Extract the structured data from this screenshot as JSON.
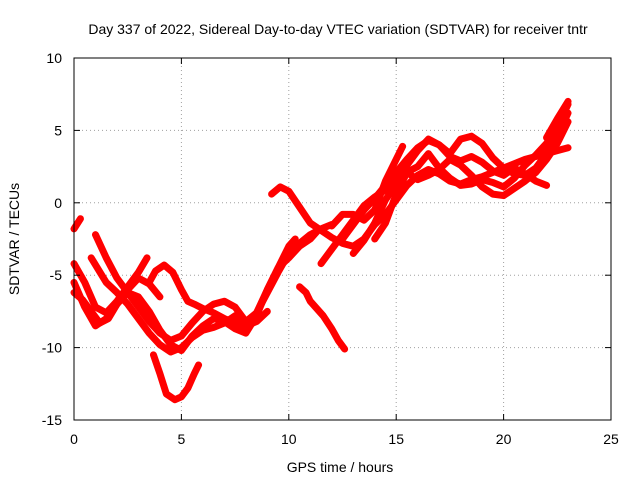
{
  "chart_data": {
    "type": "scatter",
    "title": "Day 337 of 2022, Sidereal Day-to-day VTEC variation (SDTVAR) for receiver tntr",
    "xlabel": "GPS time / hours",
    "ylabel": "SDTVAR / TECUs",
    "xlim": [
      0,
      25
    ],
    "ylim": [
      -15,
      10
    ],
    "xticks": [
      0,
      5,
      10,
      15,
      20,
      25
    ],
    "yticks": [
      -15,
      -10,
      -5,
      0,
      5,
      10
    ],
    "grid": true,
    "marker_color": "#ff0000",
    "series": [
      {
        "x": [
          0.0,
          0.3
        ],
        "y": [
          -1.8,
          -1.1
        ]
      },
      {
        "x": [
          0.0,
          0.5,
          1.0,
          1.5,
          2.0,
          2.5,
          3.0,
          3.4
        ],
        "y": [
          -4.2,
          -5.5,
          -7.2,
          -7.6,
          -6.8,
          -5.8,
          -4.8,
          -3.8
        ]
      },
      {
        "x": [
          0.0,
          0.5,
          1.0,
          1.5,
          2.0,
          2.5,
          3.0,
          3.5,
          4.0,
          4.5,
          5.0,
          5.5,
          6.0,
          6.5,
          7.0,
          7.5,
          8.0,
          8.5,
          9.0,
          9.5,
          10.0,
          10.5,
          11.0,
          11.3
        ],
        "y": [
          -5.5,
          -7.2,
          -8.5,
          -8.0,
          -7.0,
          -6.2,
          -6.5,
          -7.5,
          -8.8,
          -9.8,
          -10.2,
          -9.2,
          -8.5,
          -8.0,
          -8.2,
          -8.7,
          -9.0,
          -7.8,
          -6.0,
          -4.5,
          -3.8,
          -3.0,
          -2.5,
          -2.0
        ]
      },
      {
        "x": [
          0.0,
          0.4,
          0.8,
          1.2,
          1.6,
          2.0,
          2.5,
          3.0,
          3.5,
          4.0
        ],
        "y": [
          -6.2,
          -6.7,
          -7.5,
          -8.3,
          -8.0,
          -7.0,
          -6.0,
          -5.2,
          -5.6,
          -6.5
        ]
      },
      {
        "x": [
          0.8,
          1.5,
          2.0,
          2.5,
          3.0,
          3.5,
          4.0,
          4.5,
          5.0,
          5.5,
          6.0,
          6.5,
          7.0,
          7.5,
          8.0,
          8.5,
          9.0,
          9.5,
          10.0,
          10.5,
          11.0,
          11.5,
          12.0
        ],
        "y": [
          -3.8,
          -5.5,
          -6.2,
          -7.0,
          -8.0,
          -9.0,
          -9.8,
          -10.3,
          -10.0,
          -9.3,
          -8.8,
          -8.6,
          -8.3,
          -7.8,
          -8.5,
          -7.6,
          -6.2,
          -4.8,
          -3.5,
          -2.8,
          -2.2,
          -1.8,
          -1.5
        ]
      },
      {
        "x": [
          1.0,
          1.5,
          2.0,
          2.5,
          3.0,
          3.5,
          4.0,
          4.5,
          5.0,
          5.5,
          6.0,
          6.5,
          7.0,
          7.5,
          8.0,
          8.5,
          9.0,
          9.5,
          10.0,
          10.3
        ],
        "y": [
          -2.2,
          -3.8,
          -5.2,
          -6.2,
          -7.2,
          -8.2,
          -9.0,
          -9.5,
          -9.2,
          -8.3,
          -7.5,
          -7.0,
          -6.8,
          -7.2,
          -8.2,
          -7.6,
          -6.0,
          -4.5,
          -3.0,
          -2.5
        ]
      },
      {
        "x": [
          3.5,
          3.8,
          4.2,
          4.6,
          5.0,
          5.3,
          5.6,
          6.0,
          6.5,
          7.0,
          7.5,
          8.0,
          8.5,
          9.0
        ],
        "y": [
          -5.5,
          -4.7,
          -4.3,
          -4.8,
          -6.0,
          -6.8,
          -7.0,
          -7.3,
          -7.6,
          -8.0,
          -8.3,
          -8.5,
          -8.2,
          -7.5
        ]
      },
      {
        "x": [
          3.7,
          4.0,
          4.3,
          4.7,
          5.0,
          5.3,
          5.6,
          5.8
        ],
        "y": [
          -10.5,
          -11.8,
          -13.2,
          -13.6,
          -13.4,
          -12.8,
          -11.8,
          -11.2
        ]
      },
      {
        "x": [
          9.2,
          9.6,
          10.0,
          10.5,
          11.0,
          11.5,
          12.0,
          12.5,
          13.0,
          13.5,
          14.0,
          14.5,
          15.0,
          15.5,
          16.0,
          16.5,
          17.0,
          17.5,
          18.0,
          18.5,
          19.0,
          19.5,
          20.0,
          20.5,
          21.0,
          21.5,
          22.0,
          22.5,
          23.0
        ],
        "y": [
          0.6,
          1.1,
          0.8,
          -0.3,
          -1.4,
          -1.9,
          -2.4,
          -2.8,
          -3.0,
          -2.5,
          -1.5,
          -0.8,
          0.2,
          1.2,
          1.9,
          2.3,
          2.0,
          1.5,
          1.3,
          1.6,
          1.8,
          2.1,
          2.4,
          2.7,
          3.0,
          3.2,
          3.4,
          3.6,
          3.8
        ]
      },
      {
        "x": [
          10.5,
          10.8,
          11.0,
          11.3,
          11.6,
          12.0,
          12.3,
          12.6
        ],
        "y": [
          -5.8,
          -6.2,
          -6.8,
          -7.3,
          -7.8,
          -8.7,
          -9.5,
          -10.1
        ]
      },
      {
        "x": [
          11.5,
          12.0,
          12.5,
          13.0,
          13.5,
          14.0,
          14.5,
          15.0,
          15.5,
          16.0,
          16.5,
          17.0,
          17.5,
          18.0,
          18.5,
          19.0,
          19.5,
          20.0,
          20.5,
          21.0,
          21.5,
          22.0
        ],
        "y": [
          -4.2,
          -3.2,
          -2.2,
          -1.2,
          -0.2,
          0.4,
          0.9,
          1.7,
          2.6,
          3.6,
          4.4,
          4.0,
          3.2,
          2.9,
          3.2,
          2.8,
          2.2,
          1.9,
          2.4,
          2.0,
          1.5,
          1.2
        ]
      },
      {
        "x": [
          12.5,
          13.0,
          13.5,
          14.0,
          14.5,
          15.0,
          15.5,
          16.0,
          16.5,
          17.0,
          17.5,
          18.0,
          18.5,
          19.0,
          19.5,
          20.0,
          20.5,
          21.0,
          21.5,
          22.0,
          22.5,
          23.0
        ],
        "y": [
          -2.5,
          -1.5,
          -0.5,
          0.3,
          1.2,
          2.1,
          3.0,
          3.8,
          4.3,
          4.0,
          3.4,
          4.4,
          4.6,
          4.1,
          3.1,
          2.4,
          2.0,
          1.9,
          2.4,
          3.4,
          4.6,
          6.2
        ]
      },
      {
        "x": [
          13.0,
          13.5,
          14.0,
          14.5,
          15.0,
          15.5,
          16.0,
          16.5,
          17.0,
          17.5,
          18.0,
          18.5,
          19.0,
          19.5,
          20.0,
          20.5,
          21.0,
          21.5,
          22.0,
          22.5,
          23.0
        ],
        "y": [
          -3.5,
          -2.6,
          -1.4,
          0.2,
          1.3,
          2.1,
          2.5,
          3.4,
          2.4,
          1.7,
          1.2,
          1.3,
          1.6,
          1.4,
          1.1,
          1.7,
          2.6,
          3.3,
          4.1,
          5.2,
          6.8
        ]
      },
      {
        "x": [
          14.0,
          14.5,
          15.0,
          15.5,
          16.0,
          16.5,
          17.0,
          17.5,
          18.0,
          18.5,
          19.0,
          19.5,
          20.0,
          20.5,
          21.0,
          21.5,
          22.0,
          22.5,
          23.0
        ],
        "y": [
          -2.5,
          -1.4,
          0.6,
          2.1,
          1.6,
          1.9,
          2.3,
          3.0,
          2.6,
          1.9,
          1.1,
          0.6,
          0.5,
          1.0,
          1.5,
          2.1,
          3.0,
          4.1,
          5.6
        ]
      },
      {
        "x": [
          12.0,
          12.5,
          13.0,
          13.5,
          14.0,
          14.5,
          15.0,
          15.3
        ],
        "y": [
          -1.6,
          -0.8,
          -0.8,
          -1.2,
          -0.5,
          1.5,
          3.0,
          3.9
        ]
      },
      {
        "x": [
          22.0,
          22.5,
          23.0
        ],
        "y": [
          4.5,
          5.8,
          7.0
        ]
      }
    ]
  }
}
